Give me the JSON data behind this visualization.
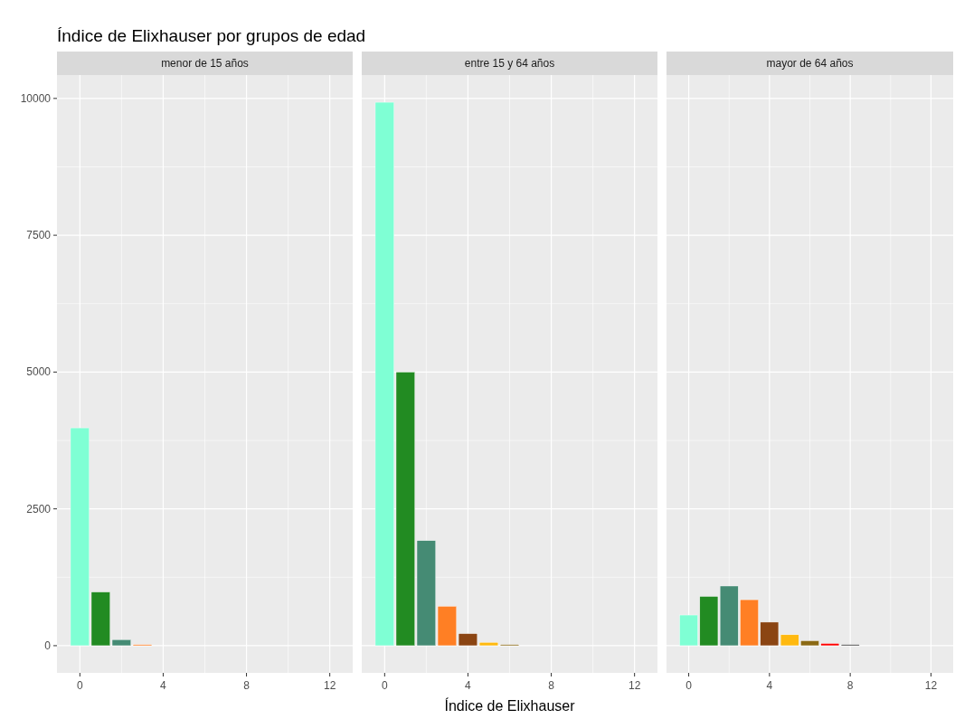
{
  "chart_data": [
    {
      "type": "bar",
      "title": "Índice de Elixhauser por grupos de edad",
      "subtitle": "menor de 15 años",
      "x": [
        0,
        1,
        2,
        3
      ],
      "values": [
        3980,
        980,
        110,
        20
      ],
      "colors": [
        "#7fffd4",
        "#228b22",
        "#458b74",
        "#ff7f24"
      ],
      "xlim": [
        -1.1,
        13.1
      ],
      "xticks": [
        0,
        4,
        8,
        12
      ],
      "ylim": [
        -497,
        10427
      ],
      "yticks": [
        0,
        2500,
        5000,
        7500,
        10000
      ],
      "grid": true
    },
    {
      "type": "bar",
      "subtitle": "entre 15 y 64 años",
      "xlabel": "Índice de Elixhauser",
      "x": [
        0,
        1,
        2,
        3,
        4,
        5,
        6
      ],
      "values": [
        9930,
        5000,
        1920,
        720,
        220,
        60,
        20
      ],
      "colors": [
        "#7fffd4",
        "#228b22",
        "#458b74",
        "#ff7f24",
        "#8b4513",
        "#ffb90f",
        "#8b6914"
      ],
      "xlim": [
        -1.1,
        13.1
      ],
      "xticks": [
        0,
        4,
        8,
        12
      ],
      "ylim": [
        -497,
        10427
      ],
      "yticks": [
        0,
        2500,
        5000,
        7500,
        10000
      ],
      "grid": true,
      "tick_labels": "x"
    },
    {
      "type": "bar",
      "subtitle": "mayor de 64 años",
      "x": [
        0,
        1,
        2,
        3,
        4,
        5,
        6,
        7,
        8
      ],
      "values": [
        560,
        900,
        1090,
        840,
        430,
        200,
        90,
        40,
        20
      ],
      "colors": [
        "#7fffd4",
        "#228b22",
        "#458b74",
        "#ff7f24",
        "#8b4513",
        "#ffb90f",
        "#8b6914",
        "#ff0000",
        "#333333"
      ],
      "xlim": [
        -1.1,
        13.1
      ],
      "xticks": [
        0,
        4,
        8,
        12
      ],
      "ylim": [
        -497,
        10427
      ],
      "yticks": [
        0,
        2500,
        5000,
        7500,
        10000
      ],
      "grid": true,
      "tick_labels": "x"
    }
  ]
}
